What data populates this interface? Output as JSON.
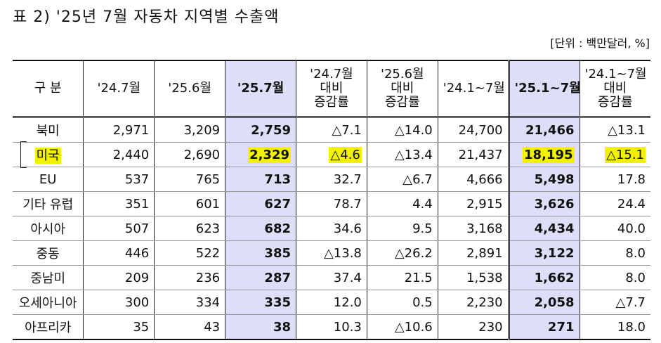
{
  "header": {
    "title": "표 2) '25년 7월 자동차 지역별 수출액",
    "unit": "[단위 : 백만달러, %]"
  },
  "table": {
    "columns": [
      [
        "구 분"
      ],
      [
        "'24.7월"
      ],
      [
        "'25.6월"
      ],
      [
        "'25.7월"
      ],
      [
        "'24.7월",
        "대비",
        "증감률"
      ],
      [
        "'25.6월",
        "대비",
        "증감률"
      ],
      [
        "'24.1~7월"
      ],
      [
        "'25.1~7월"
      ],
      [
        "'24.1~7월",
        "대비",
        "증감률"
      ]
    ],
    "rows": [
      [
        "북미",
        "2,971",
        "3,209",
        "2,759",
        "△7.1",
        "△14.0",
        "24,700",
        "21,466",
        "△13.1"
      ],
      [
        "미국",
        "2,440",
        "2,690",
        "2,329",
        "△4.6",
        "△13.4",
        "21,437",
        "18,195",
        "△15.1"
      ],
      [
        "EU",
        "537",
        "765",
        "713",
        "32.7",
        "△6.7",
        "4,666",
        "5,498",
        "17.8"
      ],
      [
        "기타 유럽",
        "351",
        "601",
        "627",
        "78.7",
        "4.4",
        "2,915",
        "3,626",
        "24.4"
      ],
      [
        "아시아",
        "507",
        "623",
        "682",
        "34.6",
        "9.5",
        "3,168",
        "4,434",
        "40.0"
      ],
      [
        "중동",
        "446",
        "522",
        "385",
        "△13.8",
        "△26.2",
        "2,891",
        "3,122",
        "8.0"
      ],
      [
        "중남미",
        "209",
        "236",
        "287",
        "37.4",
        "21.5",
        "1,538",
        "1,662",
        "8.0"
      ],
      [
        "오세아니아",
        "300",
        "334",
        "335",
        "12.0",
        "0.5",
        "2,230",
        "2,058",
        "△7.7"
      ],
      [
        "아프리카",
        "35",
        "43",
        "38",
        "10.3",
        "△10.6",
        "230",
        "271",
        "18.0"
      ]
    ]
  }
}
